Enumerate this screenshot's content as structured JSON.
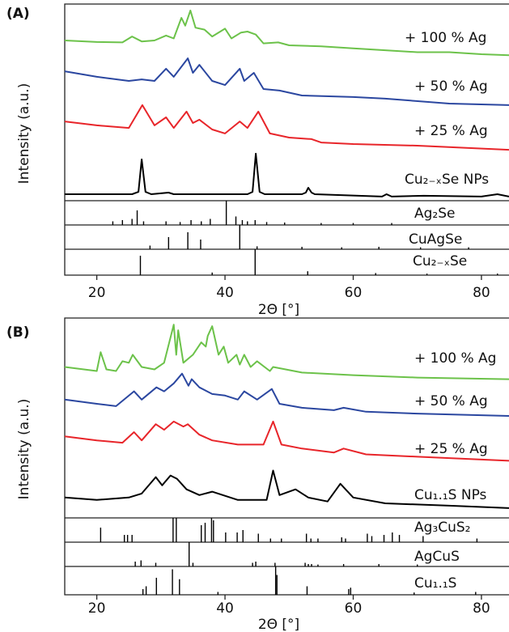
{
  "chart_data": [
    {
      "type": "line",
      "panel_label": "(A)",
      "xlabel": "2Θ [°]",
      "ylabel": "Intensity (a.u.)",
      "xlim": [
        15,
        84.3
      ],
      "xticks": [
        20,
        40,
        60,
        80
      ],
      "ylim": [
        0,
        100
      ],
      "series": [
        {
          "name": "+ 100 % Ag",
          "color": "#6cc24a",
          "x": [
            15,
            20,
            24,
            25.5,
            27,
            29,
            30.8,
            32,
            33.2,
            33.8,
            34.6,
            35.4,
            36.8,
            38,
            40,
            41,
            42.5,
            43.5,
            44.8,
            46,
            48.3,
            50,
            55,
            60,
            65,
            70,
            75,
            80,
            84.3
          ],
          "values": [
            81.5,
            80.7,
            80.5,
            83.5,
            81,
            81.5,
            84,
            82.5,
            93,
            89,
            96.7,
            88,
            87,
            83.5,
            87.5,
            82.5,
            85.5,
            86,
            84.5,
            80,
            80.5,
            79,
            78.5,
            77.5,
            76.5,
            75.5,
            75.5,
            74.5,
            74
          ]
        },
        {
          "name": "+ 50 % Ag",
          "color": "#2b47a0",
          "x": [
            15,
            20,
            25,
            27,
            29,
            30.8,
            32,
            34.2,
            35,
            36,
            38,
            40,
            42.3,
            43,
            44.5,
            46,
            48.5,
            52,
            60,
            65,
            75,
            84.3
          ],
          "values": [
            65.8,
            63,
            60.9,
            61.7,
            60.9,
            67.1,
            63,
            72.4,
            65,
            69.1,
            60.9,
            58.8,
            67.1,
            60.9,
            65,
            56.8,
            56,
            53.5,
            52.7,
            51.9,
            49.4,
            48.6
          ]
        },
        {
          "name": "+ 25 % Ag",
          "color": "#e8252a",
          "x": [
            15,
            20,
            25,
            27.1,
            29,
            30.8,
            32,
            34,
            35,
            36,
            38,
            40,
            42.3,
            43.5,
            45.2,
            47,
            50,
            53.5,
            55,
            60,
            70,
            84.3
          ],
          "values": [
            40.3,
            38.3,
            37,
            48.6,
            38.3,
            42.4,
            37,
            45.3,
            39.5,
            41.2,
            36.2,
            34.2,
            40.3,
            37,
            45.3,
            34.2,
            32.1,
            31.3,
            29.6,
            28.8,
            28,
            25.9
          ]
        },
        {
          "name": "Cu₂₋ₓSe NPs",
          "color": "#000000",
          "x": [
            15,
            25.5,
            26.5,
            27,
            27.6,
            28.5,
            31.2,
            32,
            43.5,
            44.3,
            44.8,
            45.4,
            46.2,
            52,
            52.6,
            53,
            53.5,
            54,
            64.5,
            65.2,
            66,
            71,
            80,
            82.5,
            84.3
          ],
          "values": [
            3.3,
            3.3,
            4.5,
            21,
            4.5,
            3.3,
            4.1,
            3.3,
            3.3,
            4.5,
            23.9,
            4.5,
            3.3,
            3.3,
            4.1,
            6.6,
            4.1,
            3.3,
            2.1,
            3.3,
            2.1,
            2.5,
            2.1,
            3.3,
            2.1
          ]
        }
      ],
      "references": [
        {
          "name": "Ag₂Se",
          "x": [
            22.5,
            24,
            25.5,
            26.3,
            27.3,
            30.8,
            33,
            34.7,
            36.3,
            37.7,
            40.2,
            41.7,
            42.7,
            43.5,
            44.7,
            46.5,
            49.3,
            55,
            60,
            66
          ],
          "values": [
            15,
            20,
            25,
            60,
            15,
            15,
            12,
            20,
            15,
            25,
            100,
            35,
            20,
            15,
            20,
            12,
            10,
            8,
            8,
            8
          ],
          "ylim": [
            0,
            100
          ]
        },
        {
          "name": "CuAgSe",
          "x": [
            28.3,
            31.2,
            34.2,
            36.2,
            42.3,
            45,
            52,
            58.2,
            64,
            70.5,
            78
          ],
          "values": [
            15,
            50,
            70,
            40,
            100,
            12,
            10,
            8,
            10,
            8,
            8
          ],
          "ylim": [
            0,
            100
          ]
        },
        {
          "name": "Cu₂₋ₓSe",
          "x": [
            26.8,
            38,
            44.7,
            52.9,
            63.5,
            71.5,
            82.5
          ],
          "values": [
            75,
            10,
            100,
            15,
            8,
            6,
            6
          ],
          "ylim": [
            0,
            100
          ]
        }
      ]
    },
    {
      "type": "line",
      "panel_label": "(B)",
      "xlabel": "2Θ [°]",
      "ylabel": "Intensity (a.u.)",
      "xlim": [
        15,
        84.3
      ],
      "xticks": [
        20,
        40,
        60,
        80
      ],
      "ylim": [
        0,
        100
      ],
      "series": [
        {
          "name": "+ 100 % Ag",
          "color": "#6cc24a",
          "x": [
            15,
            20,
            20.6,
            21.5,
            23,
            24,
            25,
            25.6,
            27,
            29,
            30.5,
            32,
            32.4,
            32.7,
            33.5,
            35,
            36.3,
            37,
            37.3,
            38,
            39,
            39.8,
            40.5,
            41.8,
            42.3,
            43,
            44,
            45,
            47,
            47.5,
            52,
            60,
            70,
            84.3
          ],
          "values": [
            75.5,
            73.5,
            82.9,
            74.3,
            73.5,
            78.4,
            77.6,
            81.6,
            75.5,
            74.3,
            77.6,
            96.7,
            81.6,
            93.9,
            77.6,
            81.6,
            87.8,
            85.7,
            91,
            95.9,
            81.6,
            85.7,
            77.6,
            81.6,
            76.7,
            81.6,
            75.5,
            78.4,
            73.5,
            75.5,
            72.7,
            71.4,
            70.2,
            69.4
          ]
        },
        {
          "name": "+ 50 % Ag",
          "color": "#2b47a0",
          "x": [
            15,
            20,
            23,
            25.8,
            27,
            29.3,
            30.5,
            32,
            33.3,
            34.3,
            34.8,
            36,
            38,
            40,
            42,
            43,
            45,
            47.3,
            48.5,
            52,
            57,
            58.5,
            62,
            70,
            84.3
          ],
          "values": [
            59.2,
            57.1,
            55.9,
            63.3,
            59.2,
            65.3,
            63.3,
            67.3,
            72.2,
            66.1,
            69.4,
            65.3,
            62,
            61.2,
            59.2,
            63.3,
            59.2,
            64.5,
            57.1,
            55.1,
            53.9,
            55.1,
            53.1,
            52.2,
            51
          ]
        },
        {
          "name": "+ 25 % Ag",
          "color": "#e8252a",
          "x": [
            15,
            20,
            24,
            25.8,
            27,
            29.2,
            30.5,
            32,
            33.5,
            34.2,
            36,
            38,
            42,
            46,
            47.5,
            48.8,
            52,
            57,
            58.5,
            62,
            70,
            84.3
          ],
          "values": [
            40.8,
            38.8,
            37.6,
            42.9,
            38.8,
            46.9,
            44.1,
            48.2,
            45.7,
            46.9,
            41.6,
            38.8,
            36.7,
            36.7,
            48.2,
            36.7,
            34.7,
            32.7,
            34.7,
            31.8,
            30.6,
            28.6
          ]
        },
        {
          "name": "Cu₁.₁S NPs",
          "color": "#000000",
          "x": [
            15,
            20,
            25,
            27,
            29.2,
            30.2,
            31.5,
            32.5,
            34,
            36,
            38,
            42,
            46.5,
            47.5,
            48.5,
            51,
            53,
            56,
            58,
            60,
            65,
            75,
            84.3
          ],
          "values": [
            10.2,
            9,
            10.2,
            12.2,
            20.4,
            16.3,
            21.2,
            19.6,
            14.3,
            11.4,
            13.1,
            9,
            9,
            23.7,
            11.4,
            14.3,
            10.2,
            8.2,
            17.1,
            10.2,
            7.3,
            6.1,
            4.9
          ]
        }
      ],
      "references": [
        {
          "name": "Ag₃CuS₂",
          "x": [
            20.6,
            24.3,
            24.8,
            25.5,
            31.9,
            32.4,
            36.3,
            36.9,
            37.9,
            38.2,
            40.1,
            41.9,
            42.8,
            45.2,
            47.1,
            48.8,
            52.7,
            53.4,
            54.5,
            58.2,
            58.8,
            62.2,
            62.9,
            64.8,
            66.1,
            67.2,
            70.9,
            79.3
          ],
          "values": [
            60,
            30,
            30,
            30,
            100,
            100,
            70,
            80,
            100,
            90,
            40,
            40,
            50,
            35,
            15,
            15,
            35,
            15,
            15,
            20,
            15,
            35,
            25,
            30,
            40,
            30,
            25,
            15
          ],
          "ylim": [
            0,
            100
          ]
        },
        {
          "name": "AgCuS",
          "x": [
            26,
            26.9,
            29.2,
            34.4,
            35,
            44.3,
            44.8,
            47.8,
            52.5,
            53,
            53.5,
            54.5,
            58.5,
            64,
            70
          ],
          "values": [
            20,
            25,
            15,
            100,
            15,
            15,
            20,
            15,
            15,
            10,
            10,
            8,
            10,
            10,
            8
          ],
          "ylim": [
            0,
            100
          ]
        },
        {
          "name": "Cu₁.₁S",
          "x": [
            27.2,
            27.7,
            29.3,
            31.8,
            32.9,
            38.9,
            47.9,
            48.1,
            52.8,
            59.3,
            59.6,
            69.5,
            79.1
          ],
          "values": [
            20,
            30,
            60,
            90,
            55,
            10,
            100,
            70,
            30,
            20,
            25,
            8,
            10
          ],
          "ylim": [
            0,
            100
          ]
        }
      ]
    }
  ]
}
